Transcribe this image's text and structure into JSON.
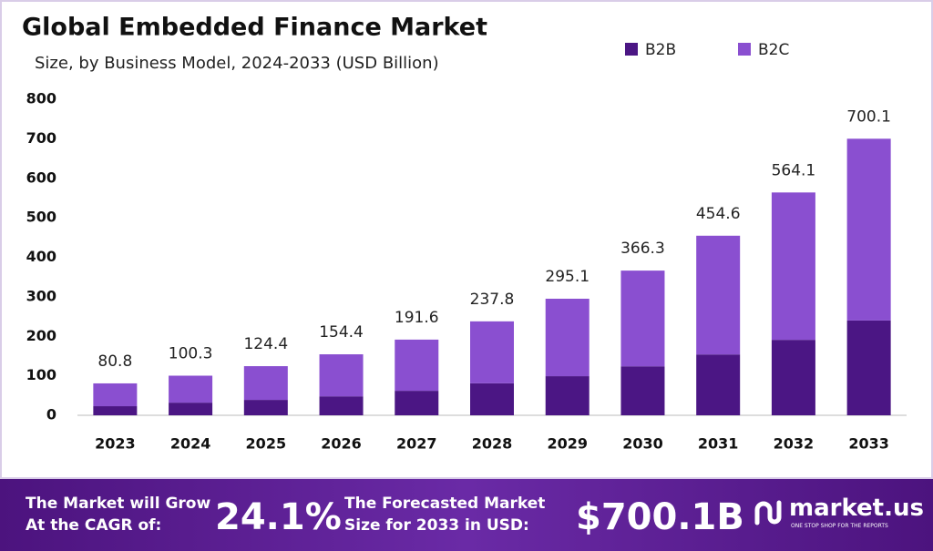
{
  "chart_data": {
    "type": "stacked-bar",
    "title": "Global Embedded Finance Market",
    "subtitle": "Size, by Business Model, 2024-2033 (USD Billion)",
    "categories": [
      "2023",
      "2024",
      "2025",
      "2026",
      "2027",
      "2028",
      "2029",
      "2030",
      "2031",
      "2032",
      "2033"
    ],
    "series": [
      {
        "name": "B2B",
        "color": "#4b1684",
        "values": [
          23,
          32,
          39,
          48,
          62,
          81,
          99,
          124,
          154,
          191,
          240
        ]
      },
      {
        "name": "B2C",
        "color": "#8a4fd0",
        "values": [
          57.8,
          68.3,
          85.4,
          106.4,
          129.6,
          156.8,
          196.1,
          242.3,
          300.6,
          373.1,
          460.1
        ]
      }
    ],
    "totals": [
      80.8,
      100.3,
      124.4,
      154.4,
      191.6,
      237.8,
      295.1,
      366.3,
      454.6,
      564.1,
      700.1
    ],
    "ylim": [
      0,
      800
    ],
    "yticks": [
      0,
      100,
      200,
      300,
      400,
      500,
      600,
      700,
      800
    ],
    "grid": false
  },
  "footer": {
    "cagr_label_1": "The Market will Grow",
    "cagr_label_2": "At the CAGR of:",
    "cagr_value": "24.1%",
    "forecast_label_1": "The Forecasted Market",
    "forecast_label_2": "Size for 2033 in USD:",
    "forecast_value": "$700.1B",
    "brand": "market.us",
    "tagline": "ONE STOP SHOP FOR THE REPORTS"
  }
}
